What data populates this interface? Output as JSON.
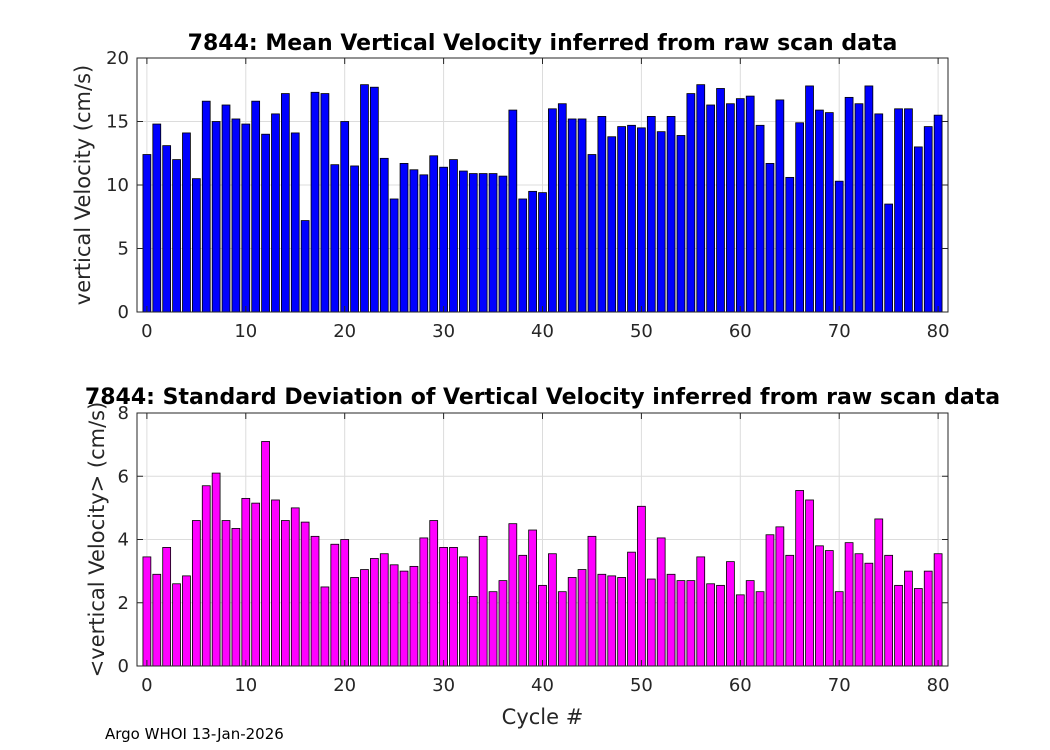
{
  "chart_data": [
    {
      "type": "bar",
      "title": "7844: Mean Vertical Velocity inferred from raw scan data",
      "xlabel": "",
      "ylabel": "vertical Velocity (cm/s)",
      "xlim": [
        -1,
        81
      ],
      "ylim": [
        0,
        20
      ],
      "xticks": [
        0,
        10,
        20,
        30,
        40,
        50,
        60,
        70,
        80
      ],
      "yticks": [
        0,
        5,
        10,
        15,
        20
      ],
      "grid": true,
      "color": "#0000ff",
      "x": [
        0,
        1,
        2,
        3,
        4,
        5,
        6,
        7,
        8,
        9,
        10,
        11,
        12,
        13,
        14,
        15,
        16,
        17,
        18,
        19,
        20,
        21,
        22,
        23,
        24,
        25,
        26,
        27,
        28,
        29,
        30,
        31,
        32,
        33,
        34,
        35,
        36,
        37,
        38,
        39,
        40,
        41,
        42,
        43,
        44,
        45,
        46,
        47,
        48,
        49,
        50,
        51,
        52,
        53,
        54,
        55,
        56,
        57,
        58,
        59,
        60,
        61,
        62,
        63,
        64,
        65,
        66,
        67,
        68,
        69,
        70,
        71,
        72,
        73,
        74,
        75,
        76,
        77,
        78,
        79,
        80
      ],
      "values": [
        12.4,
        14.8,
        13.1,
        12.0,
        14.1,
        10.5,
        16.6,
        15.0,
        16.3,
        15.2,
        14.8,
        16.6,
        14.0,
        15.6,
        17.2,
        14.1,
        7.2,
        17.3,
        17.2,
        11.6,
        15.0,
        11.5,
        17.9,
        17.7,
        12.1,
        8.9,
        11.7,
        11.2,
        10.8,
        12.3,
        11.4,
        12.0,
        11.1,
        10.9,
        10.9,
        10.9,
        10.7,
        15.9,
        8.9,
        9.5,
        9.4,
        16.0,
        16.4,
        15.2,
        15.2,
        12.4,
        15.4,
        13.8,
        14.6,
        14.7,
        14.5,
        15.4,
        14.2,
        15.4,
        13.9,
        17.2,
        17.9,
        16.3,
        17.6,
        16.4,
        16.8,
        17.0,
        14.7,
        11.7,
        16.7,
        10.6,
        14.9,
        17.8,
        15.9,
        15.7,
        10.3,
        16.9,
        16.4,
        17.8,
        15.6,
        8.5,
        16.0,
        16.0,
        13.0,
        14.6,
        15.5
      ]
    },
    {
      "type": "bar",
      "title": "7844: Standard Deviation of Vertical Velocity inferred from raw scan data",
      "xlabel": "Cycle #",
      "ylabel": "<vertical Velocity> (cm/s)",
      "xlim": [
        -1,
        81
      ],
      "ylim": [
        0,
        8
      ],
      "xticks": [
        0,
        10,
        20,
        30,
        40,
        50,
        60,
        70,
        80
      ],
      "yticks": [
        0,
        2,
        4,
        6,
        8
      ],
      "grid": true,
      "color": "#ff00ff",
      "x": [
        0,
        1,
        2,
        3,
        4,
        5,
        6,
        7,
        8,
        9,
        10,
        11,
        12,
        13,
        14,
        15,
        16,
        17,
        18,
        19,
        20,
        21,
        22,
        23,
        24,
        25,
        26,
        27,
        28,
        29,
        30,
        31,
        32,
        33,
        34,
        35,
        36,
        37,
        38,
        39,
        40,
        41,
        42,
        43,
        44,
        45,
        46,
        47,
        48,
        49,
        50,
        51,
        52,
        53,
        54,
        55,
        56,
        57,
        58,
        59,
        60,
        61,
        62,
        63,
        64,
        65,
        66,
        67,
        68,
        69,
        70,
        71,
        72,
        73,
        74,
        75,
        76,
        77,
        78,
        79,
        80
      ],
      "values": [
        3.45,
        2.9,
        3.75,
        2.6,
        2.85,
        4.6,
        5.7,
        6.1,
        4.6,
        4.35,
        5.3,
        5.15,
        7.1,
        5.25,
        4.6,
        5.0,
        4.55,
        4.1,
        2.5,
        3.85,
        4.0,
        2.8,
        3.05,
        3.4,
        3.55,
        3.2,
        3.0,
        3.15,
        4.05,
        4.6,
        3.75,
        3.75,
        3.45,
        2.2,
        4.1,
        2.35,
        2.7,
        4.5,
        3.5,
        4.3,
        2.55,
        3.55,
        2.35,
        2.8,
        3.05,
        4.1,
        2.9,
        2.85,
        2.8,
        3.6,
        5.05,
        2.75,
        4.05,
        2.9,
        2.7,
        2.7,
        3.45,
        2.6,
        2.55,
        3.3,
        2.25,
        2.7,
        2.35,
        4.15,
        4.4,
        3.5,
        5.55,
        5.25,
        3.8,
        3.65,
        2.35,
        3.9,
        3.55,
        3.25,
        4.65,
        3.5,
        2.55,
        3.0,
        2.45,
        3.0,
        3.55
      ]
    }
  ],
  "footer": "Argo WHOI 13-Jan-2026"
}
